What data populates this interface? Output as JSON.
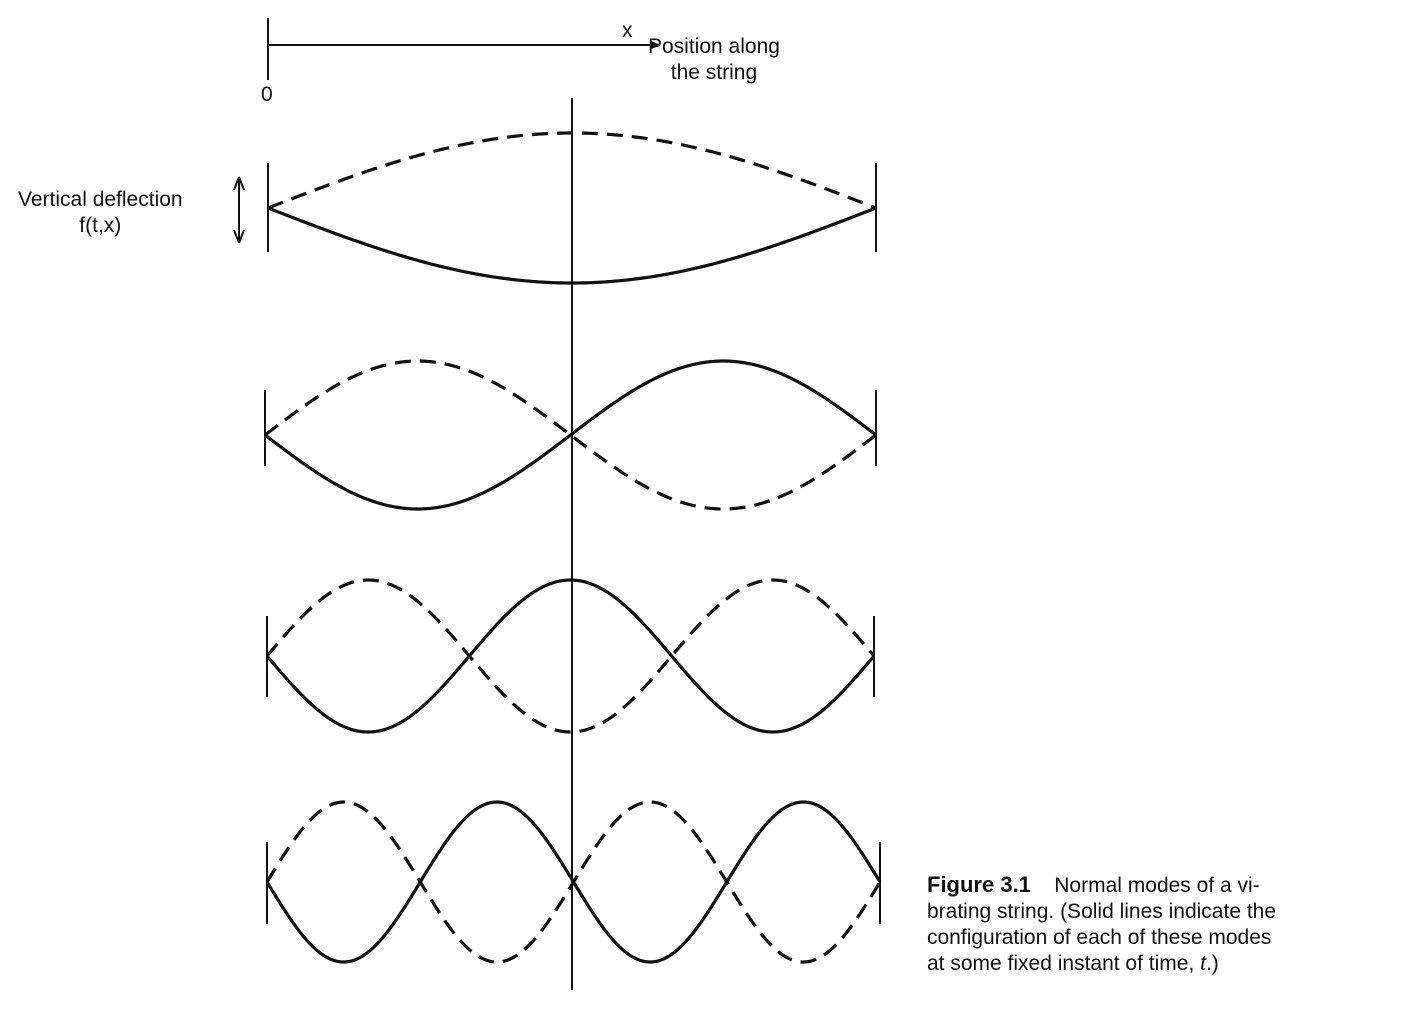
{
  "axis": {
    "variable": "x",
    "label_line1": "Position along",
    "label_line2": "the string",
    "origin": "0"
  },
  "deflection": {
    "label_line1": "Vertical deflection",
    "label_line2": "f(t,x)"
  },
  "modes": [
    {
      "n": 1,
      "solid": "f(t,x) negative half-wave",
      "dashed": "f(t,x) positive half-wave"
    },
    {
      "n": 2
    },
    {
      "n": 3
    },
    {
      "n": 4
    }
  ],
  "caption": {
    "figure_label": "Figure 3.1",
    "line1_text": "Normal modes of a vi-",
    "line2": "brating string. (Solid lines indicate the",
    "line3": "configuration of each of these modes",
    "line4_prefix": "at some fixed instant of time, ",
    "line4_var": "t",
    "line4_suffix": ".)"
  },
  "colors": {
    "ink": "#111111",
    "background": "#ffffff"
  }
}
